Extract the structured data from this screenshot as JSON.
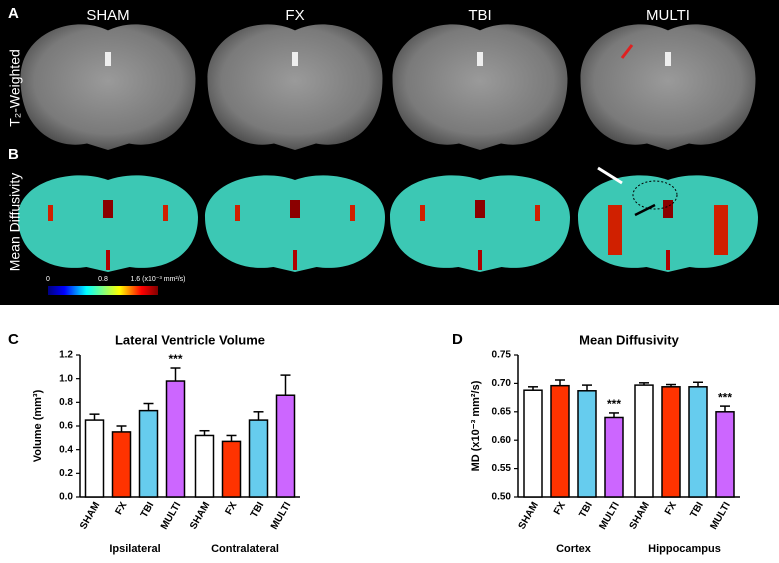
{
  "panels": {
    "a": "A",
    "b": "B",
    "c": "C",
    "d": "D"
  },
  "columns": [
    "SHAM",
    "FX",
    "TBI",
    "MULTI"
  ],
  "row_labels": {
    "a": "T₂-Weighted",
    "b": "Mean Diffusivity"
  },
  "colorbar": {
    "min": "0",
    "mid": "0.8",
    "max": "1.6 (x10⁻³ mm²/s)"
  },
  "chart_data": [
    {
      "type": "bar",
      "title": "Lateral Ventricle Volume",
      "y_label": "Volume (mm³)",
      "categories": [
        "Ipsilateral",
        "Contralateral"
      ],
      "series": [
        {
          "name": "SHAM",
          "color": "#ffffff",
          "values": [
            0.65,
            0.52
          ],
          "errors": [
            0.05,
            0.04
          ]
        },
        {
          "name": "FX",
          "color": "#ff3300",
          "values": [
            0.55,
            0.47
          ],
          "errors": [
            0.05,
            0.05
          ]
        },
        {
          "name": "TBI",
          "color": "#66ccee",
          "values": [
            0.73,
            0.65
          ],
          "errors": [
            0.06,
            0.07
          ]
        },
        {
          "name": "MULTI",
          "color": "#cc66ff",
          "values": [
            0.98,
            0.86
          ],
          "errors": [
            0.11,
            0.17
          ]
        }
      ],
      "ylim": [
        0,
        1.2
      ],
      "yticks": [
        {
          "value": 0,
          "label": "0.0"
        },
        0.2,
        0.4,
        0.6,
        0.8,
        {
          "value": 1,
          "label": "1.0"
        },
        1.2
      ],
      "annotations": [
        {
          "text": "***",
          "series": 3,
          "category": 0
        }
      ]
    },
    {
      "type": "bar",
      "title": "Mean Diffusivity",
      "y_label": "MD (x10⁻³ mm²/s)",
      "categories": [
        "Cortex",
        "Hippocampus"
      ],
      "series": [
        {
          "name": "SHAM",
          "color": "#ffffff",
          "values": [
            0.688,
            0.697
          ],
          "errors": [
            0.006,
            0.004
          ]
        },
        {
          "name": "FX",
          "color": "#ff3300",
          "values": [
            0.696,
            0.694
          ],
          "errors": [
            0.01,
            0.004
          ]
        },
        {
          "name": "TBI",
          "color": "#66ccee",
          "values": [
            0.687,
            0.694
          ],
          "errors": [
            0.01,
            0.008
          ]
        },
        {
          "name": "MULTI",
          "color": "#cc66ff",
          "values": [
            0.64,
            0.65
          ],
          "errors": [
            0.008,
            0.01
          ]
        }
      ],
      "ylim": [
        0.5,
        0.75
      ],
      "yticks": [
        {
          "value": 0.5,
          "label": "0.50"
        },
        0.55,
        {
          "value": 0.6,
          "label": "0.60"
        },
        0.65,
        {
          "value": 0.7,
          "label": "0.70"
        },
        0.75
      ],
      "annotations": [
        {
          "text": "***",
          "series": 3,
          "category": 0
        },
        {
          "text": "***",
          "series": 3,
          "category": 1
        }
      ]
    }
  ]
}
